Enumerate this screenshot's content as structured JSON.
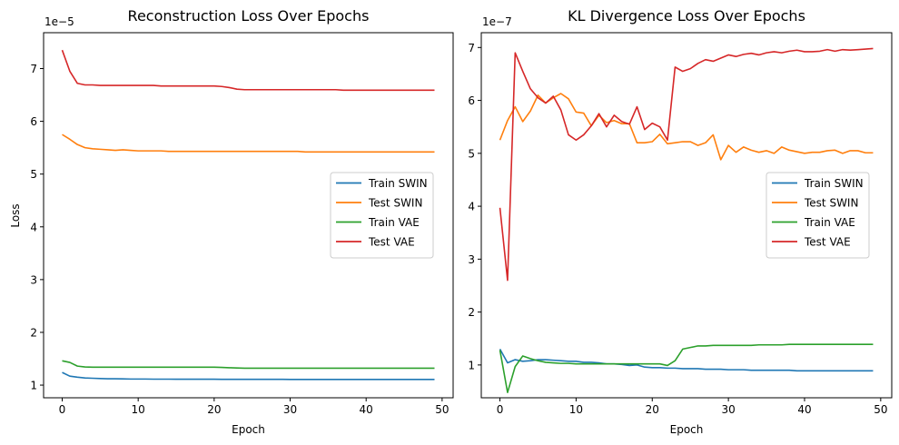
{
  "colors": {
    "train_swin": "#1f77b4",
    "test_swin": "#ff7f0e",
    "train_vae": "#2ca02c",
    "test_vae": "#d62728"
  },
  "chart_data": [
    {
      "type": "line",
      "title": "Reconstruction Loss Over Epochs",
      "xlabel": "Epoch",
      "ylabel": "Loss",
      "offset_text": "1e−5",
      "scale": 1e-05,
      "xlim": [
        -2.45,
        51.45
      ],
      "ylim": [
        0.76,
        7.68
      ],
      "xticks": [
        0,
        10,
        20,
        30,
        40,
        50
      ],
      "yticks": [
        1,
        2,
        3,
        4,
        5,
        6,
        7
      ],
      "grid": false,
      "legend": "center-right",
      "x": [
        0,
        1,
        2,
        3,
        4,
        5,
        6,
        7,
        8,
        9,
        10,
        11,
        12,
        13,
        14,
        15,
        16,
        17,
        18,
        19,
        20,
        21,
        22,
        23,
        24,
        25,
        26,
        27,
        28,
        29,
        30,
        31,
        32,
        33,
        34,
        35,
        36,
        37,
        38,
        39,
        40,
        41,
        42,
        43,
        44,
        45,
        46,
        47,
        48,
        49
      ],
      "series": [
        {
          "name": "Train SWIN",
          "color_key": "train_swin",
          "values": [
            1.24,
            1.17,
            1.15,
            1.135,
            1.13,
            1.125,
            1.12,
            1.12,
            1.118,
            1.115,
            1.115,
            1.115,
            1.113,
            1.113,
            1.113,
            1.112,
            1.112,
            1.112,
            1.111,
            1.111,
            1.111,
            1.11,
            1.11,
            1.11,
            1.11,
            1.109,
            1.109,
            1.109,
            1.109,
            1.109,
            1.108,
            1.108,
            1.108,
            1.108,
            1.108,
            1.108,
            1.108,
            1.107,
            1.107,
            1.107,
            1.107,
            1.107,
            1.107,
            1.107,
            1.107,
            1.107,
            1.107,
            1.107,
            1.107,
            1.107
          ]
        },
        {
          "name": "Test SWIN",
          "color_key": "test_swin",
          "values": [
            5.75,
            5.66,
            5.56,
            5.5,
            5.48,
            5.47,
            5.46,
            5.45,
            5.46,
            5.45,
            5.44,
            5.44,
            5.44,
            5.44,
            5.43,
            5.43,
            5.43,
            5.43,
            5.43,
            5.43,
            5.43,
            5.43,
            5.43,
            5.43,
            5.43,
            5.43,
            5.43,
            5.43,
            5.43,
            5.43,
            5.43,
            5.43,
            5.42,
            5.42,
            5.42,
            5.42,
            5.42,
            5.42,
            5.42,
            5.42,
            5.42,
            5.42,
            5.42,
            5.42,
            5.42,
            5.42,
            5.42,
            5.42,
            5.42,
            5.42
          ]
        },
        {
          "name": "Train VAE",
          "color_key": "train_vae",
          "values": [
            1.46,
            1.43,
            1.36,
            1.345,
            1.34,
            1.34,
            1.34,
            1.34,
            1.34,
            1.34,
            1.34,
            1.34,
            1.34,
            1.34,
            1.34,
            1.34,
            1.34,
            1.34,
            1.34,
            1.34,
            1.34,
            1.335,
            1.33,
            1.325,
            1.32,
            1.32,
            1.32,
            1.32,
            1.32,
            1.32,
            1.32,
            1.32,
            1.32,
            1.32,
            1.32,
            1.32,
            1.32,
            1.32,
            1.32,
            1.32,
            1.32,
            1.32,
            1.32,
            1.32,
            1.32,
            1.32,
            1.32,
            1.32,
            1.32,
            1.32
          ]
        },
        {
          "name": "Test VAE",
          "color_key": "test_vae",
          "values": [
            7.35,
            6.95,
            6.72,
            6.69,
            6.69,
            6.68,
            6.68,
            6.68,
            6.68,
            6.68,
            6.68,
            6.68,
            6.68,
            6.67,
            6.67,
            6.67,
            6.67,
            6.67,
            6.67,
            6.67,
            6.67,
            6.66,
            6.64,
            6.61,
            6.6,
            6.6,
            6.6,
            6.6,
            6.6,
            6.6,
            6.6,
            6.6,
            6.6,
            6.6,
            6.6,
            6.6,
            6.6,
            6.59,
            6.59,
            6.59,
            6.59,
            6.59,
            6.59,
            6.59,
            6.59,
            6.59,
            6.59,
            6.59,
            6.59,
            6.59
          ]
        }
      ]
    },
    {
      "type": "line",
      "title": "KL Divergence Loss Over Epochs",
      "xlabel": "Epoch",
      "ylabel": "",
      "offset_text": "1e−7",
      "scale": 1e-07,
      "xlim": [
        -2.45,
        51.45
      ],
      "ylim": [
        0.38,
        7.28
      ],
      "xticks": [
        0,
        10,
        20,
        30,
        40,
        50
      ],
      "yticks": [
        1,
        2,
        3,
        4,
        5,
        6,
        7
      ],
      "grid": false,
      "legend": "center-right",
      "x": [
        0,
        1,
        2,
        3,
        4,
        5,
        6,
        7,
        8,
        9,
        10,
        11,
        12,
        13,
        14,
        15,
        16,
        17,
        18,
        19,
        20,
        21,
        22,
        23,
        24,
        25,
        26,
        27,
        28,
        29,
        30,
        31,
        32,
        33,
        34,
        35,
        36,
        37,
        38,
        39,
        40,
        41,
        42,
        43,
        44,
        45,
        46,
        47,
        48,
        49
      ],
      "series": [
        {
          "name": "Train SWIN",
          "color_key": "train_swin",
          "values": [
            1.3,
            1.04,
            1.1,
            1.07,
            1.08,
            1.1,
            1.1,
            1.09,
            1.08,
            1.07,
            1.07,
            1.05,
            1.05,
            1.04,
            1.02,
            1.02,
            1.01,
            0.99,
            1.0,
            0.96,
            0.95,
            0.95,
            0.94,
            0.94,
            0.93,
            0.93,
            0.93,
            0.92,
            0.92,
            0.92,
            0.91,
            0.91,
            0.91,
            0.9,
            0.9,
            0.9,
            0.9,
            0.9,
            0.9,
            0.89,
            0.89,
            0.89,
            0.89,
            0.89,
            0.89,
            0.89,
            0.89,
            0.89,
            0.89,
            0.89
          ]
        },
        {
          "name": "Test SWIN",
          "color_key": "test_swin",
          "values": [
            5.25,
            5.62,
            5.88,
            5.6,
            5.8,
            6.1,
            5.95,
            6.05,
            6.13,
            6.03,
            5.78,
            5.76,
            5.52,
            5.72,
            5.58,
            5.62,
            5.56,
            5.56,
            5.2,
            5.2,
            5.22,
            5.36,
            5.18,
            5.2,
            5.22,
            5.22,
            5.15,
            5.2,
            5.35,
            4.88,
            5.15,
            5.02,
            5.12,
            5.06,
            5.02,
            5.05,
            5.0,
            5.12,
            5.06,
            5.03,
            5.0,
            5.02,
            5.02,
            5.05,
            5.06,
            5.0,
            5.05,
            5.05,
            5.01,
            5.01
          ]
        },
        {
          "name": "Train VAE",
          "color_key": "train_vae",
          "values": [
            1.28,
            0.48,
            0.97,
            1.17,
            1.12,
            1.08,
            1.05,
            1.04,
            1.03,
            1.03,
            1.02,
            1.02,
            1.02,
            1.02,
            1.02,
            1.02,
            1.02,
            1.02,
            1.02,
            1.02,
            1.02,
            1.02,
            0.99,
            1.08,
            1.3,
            1.33,
            1.36,
            1.36,
            1.37,
            1.37,
            1.37,
            1.37,
            1.37,
            1.37,
            1.38,
            1.38,
            1.38,
            1.38,
            1.39,
            1.39,
            1.39,
            1.39,
            1.39,
            1.39,
            1.39,
            1.39,
            1.39,
            1.39,
            1.39,
            1.39
          ]
        },
        {
          "name": "Test VAE",
          "color_key": "test_vae",
          "values": [
            3.97,
            2.6,
            6.9,
            6.55,
            6.22,
            6.05,
            5.95,
            6.08,
            5.82,
            5.35,
            5.25,
            5.35,
            5.52,
            5.75,
            5.5,
            5.72,
            5.6,
            5.55,
            5.88,
            5.45,
            5.57,
            5.5,
            5.25,
            6.63,
            6.55,
            6.6,
            6.7,
            6.77,
            6.74,
            6.8,
            6.86,
            6.83,
            6.87,
            6.89,
            6.86,
            6.9,
            6.92,
            6.9,
            6.93,
            6.95,
            6.92,
            6.92,
            6.93,
            6.96,
            6.93,
            6.96,
            6.95,
            6.96,
            6.97,
            6.98
          ]
        }
      ]
    }
  ]
}
